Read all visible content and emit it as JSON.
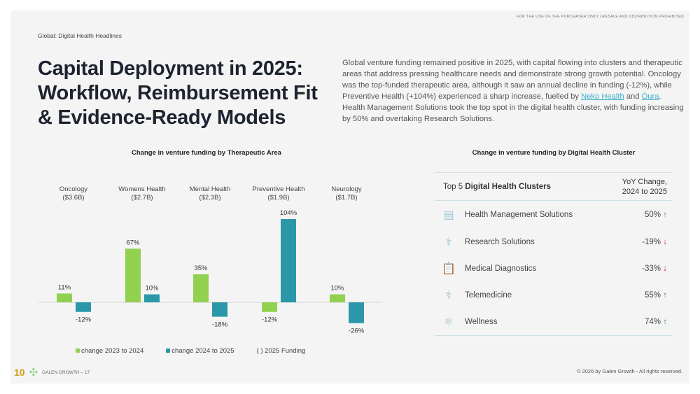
{
  "notice": "FOR THE USE OF THE PURCHASER ONLY | RESALE AND DISTRIBUTION PROHIBITED",
  "breadcrumb": "Global: Digital Health Headlines",
  "title": "Capital Deployment in 2025: Workflow, Reimbursement Fit & Evidence-Ready Models",
  "intro": {
    "p1": "Global venture funding remained positive in 2025, with capital flowing into clusters and therapeutic areas that address pressing healthcare needs and demonstrate strong growth potential. Oncology was the top-funded therapeutic area, although it saw an annual decline in funding (-12%), while Preventive Health (+104%) experienced a sharp increase, fuelled by ",
    "link1": "Neko Health",
    "p2": " and ",
    "link2": "Ōura",
    "p3": ". Health Management Solutions took the top spot in the digital health cluster, with funding increasing by 50% and overtaking Research Solutions."
  },
  "chart_data": {
    "type": "bar",
    "title": "Change in venture funding by Therapeutic Area",
    "categories": [
      "Oncology",
      "Womens Health",
      "Mental Health",
      "Preventive Health",
      "Neurology"
    ],
    "funding": [
      "($3.6B)",
      "($2.7B)",
      "($2.3B)",
      "($1.9B)",
      "($1.7B)"
    ],
    "series": [
      {
        "name": "change 2023 to 2024",
        "values": [
          11,
          67,
          35,
          -12,
          10
        ],
        "color": "#92d050"
      },
      {
        "name": "change 2024 to 2025",
        "values": [
          -12,
          10,
          -18,
          104,
          -26
        ],
        "color": "#2a98a8"
      }
    ],
    "legend_note": "( ) 2025 Funding",
    "unit": "%"
  },
  "table": {
    "title": "Change in venture funding by Digital Health Cluster",
    "head_left_a": "Top 5 ",
    "head_left_b": "Digital Health Clusters",
    "head_right_1": "YoY  Change,",
    "head_right_2": "2024 to 2025",
    "rows": [
      {
        "name": "Health Management Solutions",
        "value": "50%",
        "dir": "up",
        "icon": "dashboard-icon"
      },
      {
        "name": "Research Solutions",
        "value": "-19%",
        "dir": "down",
        "icon": "syringe-icon"
      },
      {
        "name": "Medical Diagnostics",
        "value": "-33%",
        "dir": "down",
        "icon": "clipboard-icon"
      },
      {
        "name": "Telemedicine",
        "value": "55%",
        "dir": "up",
        "icon": "stethoscope-icon"
      },
      {
        "name": "Wellness",
        "value": "74%",
        "dir": "up",
        "icon": "atom-icon"
      }
    ]
  },
  "footer": {
    "logo": "10",
    "brand": "GALEN GROWTH – 17",
    "copyright": "© 2026 by Galen Growth  - All rights reserved."
  },
  "arrows": {
    "up": "↑",
    "down": "↓"
  }
}
